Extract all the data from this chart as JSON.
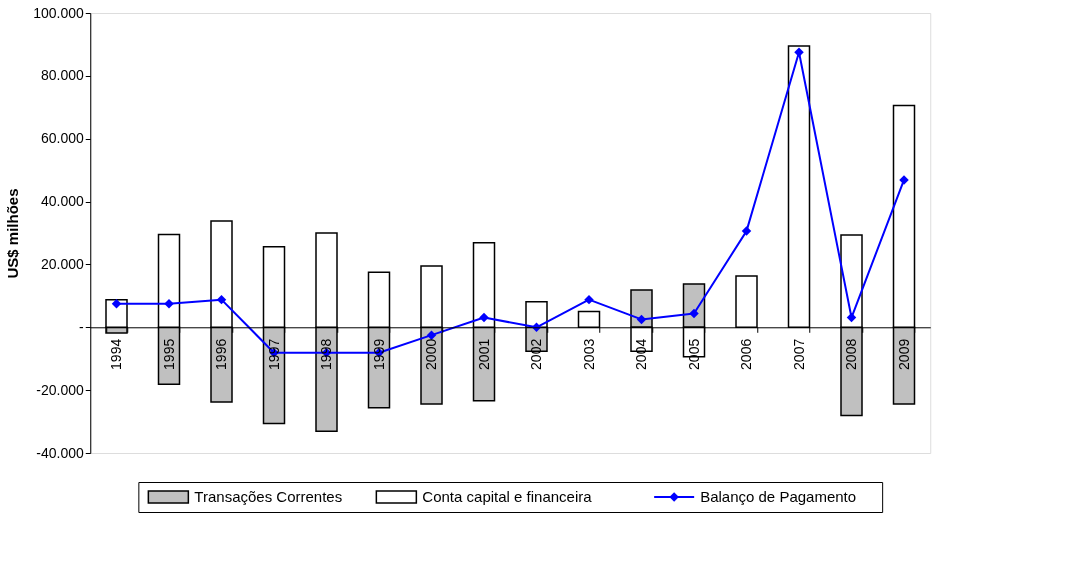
{
  "chart_data": {
    "type": "bar",
    "ylabel": "US$ milhões",
    "categories": [
      "1994",
      "1995",
      "1996",
      "1997",
      "1998",
      "1999",
      "2000",
      "2001",
      "2002",
      "2003",
      "2004",
      "2005",
      "2006",
      "2007",
      "2008",
      "2009"
    ],
    "series": [
      {
        "name": "Transações Correntes",
        "color": "#c0c0c0",
        "values": [
          -1800,
          -18100,
          -23800,
          -30600,
          -33100,
          -25600,
          -24400,
          -23400,
          -7600,
          null,
          11900,
          13800,
          null,
          null,
          -28100,
          -24400
        ]
      },
      {
        "name": "Conta capital e financeira",
        "color": "#ffffff",
        "values": [
          8800,
          29500,
          33800,
          25600,
          30000,
          17500,
          19500,
          26900,
          8100,
          5000,
          -7600,
          -9400,
          16300,
          89500,
          29400,
          70600
        ]
      },
      {
        "name": "Balanço de Pagamento",
        "type": "line",
        "color": "#0000ff",
        "marker": "diamond",
        "values": [
          7500,
          7500,
          8800,
          -8100,
          -8100,
          -8100,
          -2500,
          3100,
          0,
          8800,
          2500,
          4400,
          30600,
          87500,
          3100,
          46900
        ]
      }
    ],
    "ylim": [
      -40000,
      100000
    ],
    "yticks": [
      {
        "value": -40000,
        "label": "-40.000"
      },
      {
        "value": -20000,
        "label": "-20.000"
      },
      {
        "value": 0,
        "label": "-"
      },
      {
        "value": 20000,
        "label": "20.000"
      },
      {
        "value": 40000,
        "label": "40.000"
      },
      {
        "value": 60000,
        "label": "60.000"
      },
      {
        "value": 80000,
        "label": "80.000"
      },
      {
        "value": 100000,
        "label": "100.000"
      }
    ],
    "grid": false,
    "legend": "bottom",
    "stacked": true
  }
}
